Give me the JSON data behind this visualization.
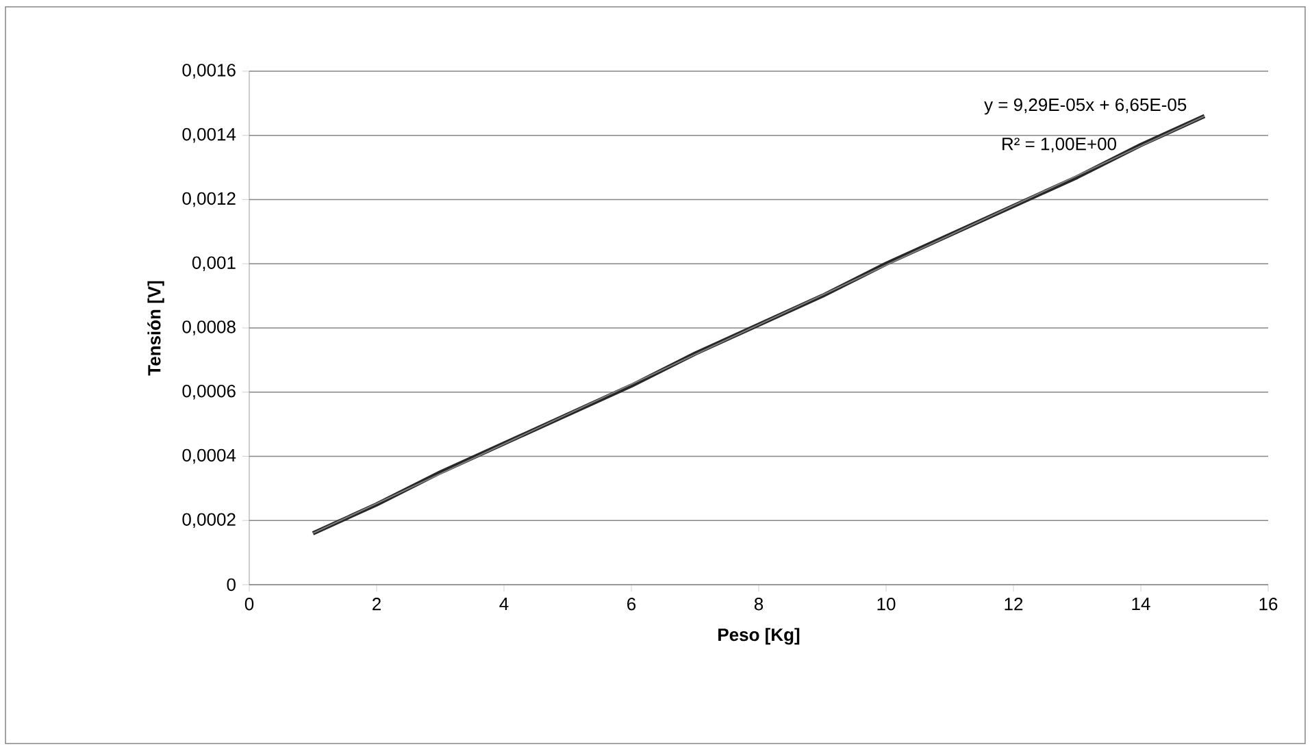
{
  "chart_data": {
    "type": "line",
    "xlabel": "Peso [Kg]",
    "ylabel": "Tensión [V]",
    "xlim": [
      0,
      16
    ],
    "xticks": [
      0,
      2,
      4,
      6,
      8,
      10,
      12,
      14,
      16
    ],
    "ylim": [
      0,
      0.0016
    ],
    "yticks": [
      0,
      {
        "value": 0.0002,
        "label": "0,0002"
      },
      {
        "value": 0.0004,
        "label": "0,0004"
      },
      {
        "value": 0.0006,
        "label": "0,0006"
      },
      {
        "value": 0.0008,
        "label": "0,0008"
      },
      {
        "value": 0.001,
        "label": "0,001"
      },
      {
        "value": 0.0012,
        "label": "0,0012"
      },
      {
        "value": 0.0014,
        "label": "0,0014"
      },
      {
        "value": 0.0016,
        "label": "0,0016"
      }
    ],
    "grid": "y",
    "series": [
      {
        "color": "#262626",
        "x": [
          1,
          2,
          3,
          4,
          5,
          6,
          7,
          8,
          9,
          10,
          11,
          12,
          13,
          14,
          15
        ],
        "values": [
          0.00016,
          0.00025,
          0.00035,
          0.00044,
          0.00053,
          0.00062,
          0.00072,
          0.00081,
          0.0009,
          0.001,
          0.00109,
          0.00118,
          0.00127,
          0.00137,
          0.00146
        ]
      },
      {
        "color": "#7f7f7f",
        "x": [
          1,
          15
        ],
        "values": [
          0.00016,
          0.00146
        ]
      }
    ],
    "annotations": [
      "y = 9,29E-05x + 6,65E-05",
      "R² = 1,00E+00"
    ]
  }
}
